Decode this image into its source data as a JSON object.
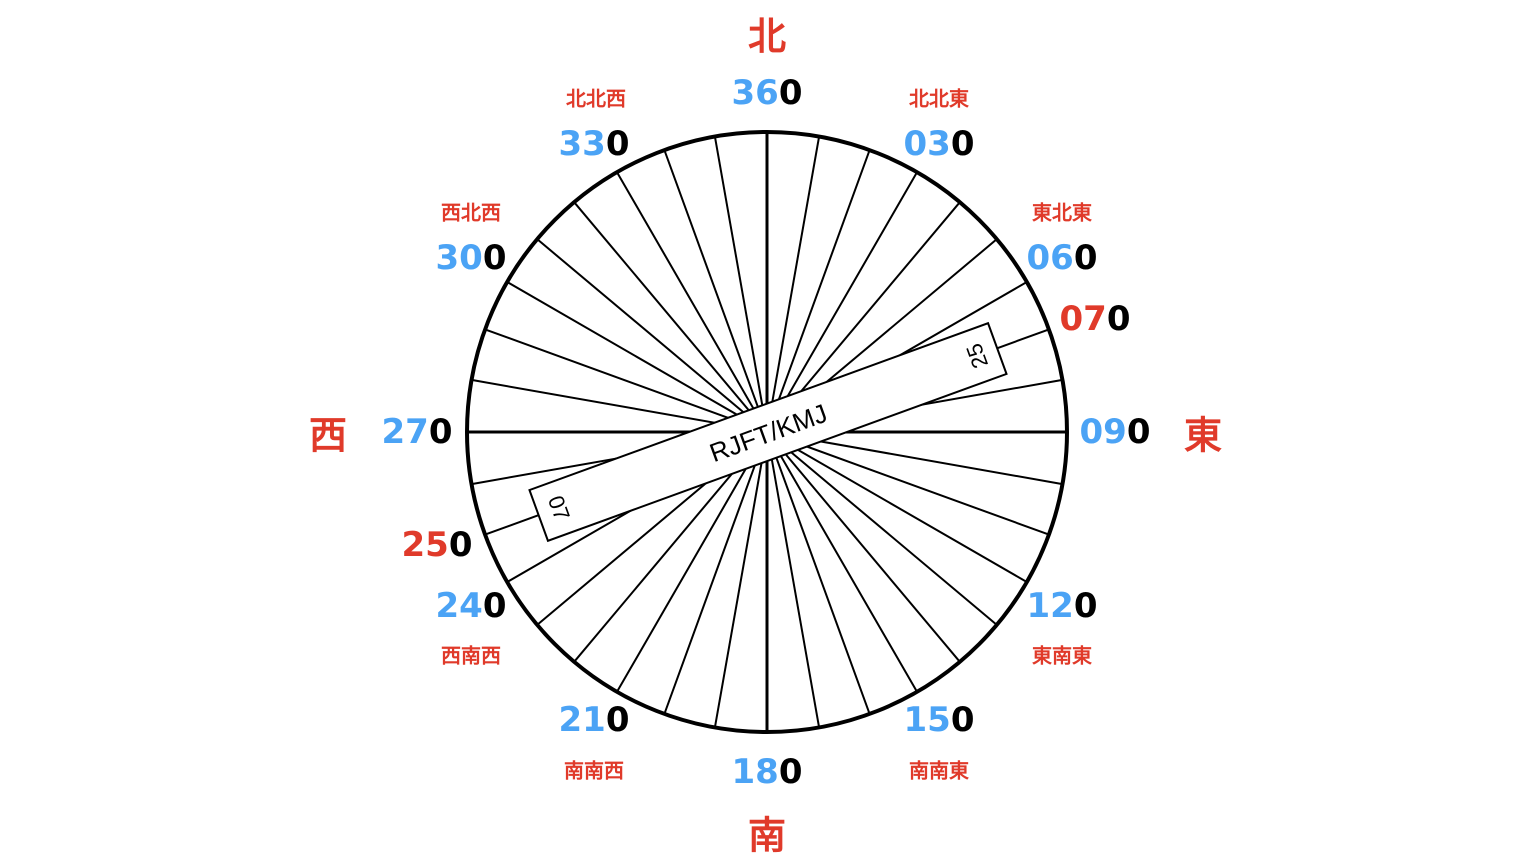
{
  "colors": {
    "red": "#e03a2a",
    "blue": "#4ba3f5",
    "black": "#000000"
  },
  "runway": {
    "name": "RJFT/KMJ",
    "ends": [
      "07",
      "25"
    ],
    "heading_deg": 70
  },
  "spoke_interval_deg": 10,
  "cardinals": [
    {
      "id": "n",
      "text": "北"
    },
    {
      "id": "e",
      "text": "東"
    },
    {
      "id": "s",
      "text": "南"
    },
    {
      "id": "w",
      "text": "西"
    }
  ],
  "intercardinals": [
    {
      "id": "nnw",
      "text": "北北西"
    },
    {
      "id": "nne",
      "text": "北北東"
    },
    {
      "id": "wnw",
      "text": "西北西"
    },
    {
      "id": "ene",
      "text": "東北東"
    },
    {
      "id": "wsw",
      "text": "西南西"
    },
    {
      "id": "ese",
      "text": "東南東"
    },
    {
      "id": "ssw",
      "text": "南南西"
    },
    {
      "id": "sse",
      "text": "南南東"
    }
  ],
  "headings": [
    {
      "id": "h360",
      "prefix": "36",
      "suffix": "0",
      "highlight": false
    },
    {
      "id": "h030",
      "prefix": "03",
      "suffix": "0",
      "highlight": false
    },
    {
      "id": "h060",
      "prefix": "06",
      "suffix": "0",
      "highlight": false
    },
    {
      "id": "h070",
      "prefix": "07",
      "suffix": "0",
      "highlight": true
    },
    {
      "id": "h090",
      "prefix": "09",
      "suffix": "0",
      "highlight": false
    },
    {
      "id": "h120",
      "prefix": "12",
      "suffix": "0",
      "highlight": false
    },
    {
      "id": "h150",
      "prefix": "15",
      "suffix": "0",
      "highlight": false
    },
    {
      "id": "h180",
      "prefix": "18",
      "suffix": "0",
      "highlight": false
    },
    {
      "id": "h210",
      "prefix": "21",
      "suffix": "0",
      "highlight": false
    },
    {
      "id": "h240",
      "prefix": "24",
      "suffix": "0",
      "highlight": false
    },
    {
      "id": "h250",
      "prefix": "25",
      "suffix": "0",
      "highlight": true
    },
    {
      "id": "h270",
      "prefix": "27",
      "suffix": "0",
      "highlight": false
    },
    {
      "id": "h300",
      "prefix": "30",
      "suffix": "0",
      "highlight": false
    },
    {
      "id": "h330",
      "prefix": "33",
      "suffix": "0",
      "highlight": false
    }
  ]
}
